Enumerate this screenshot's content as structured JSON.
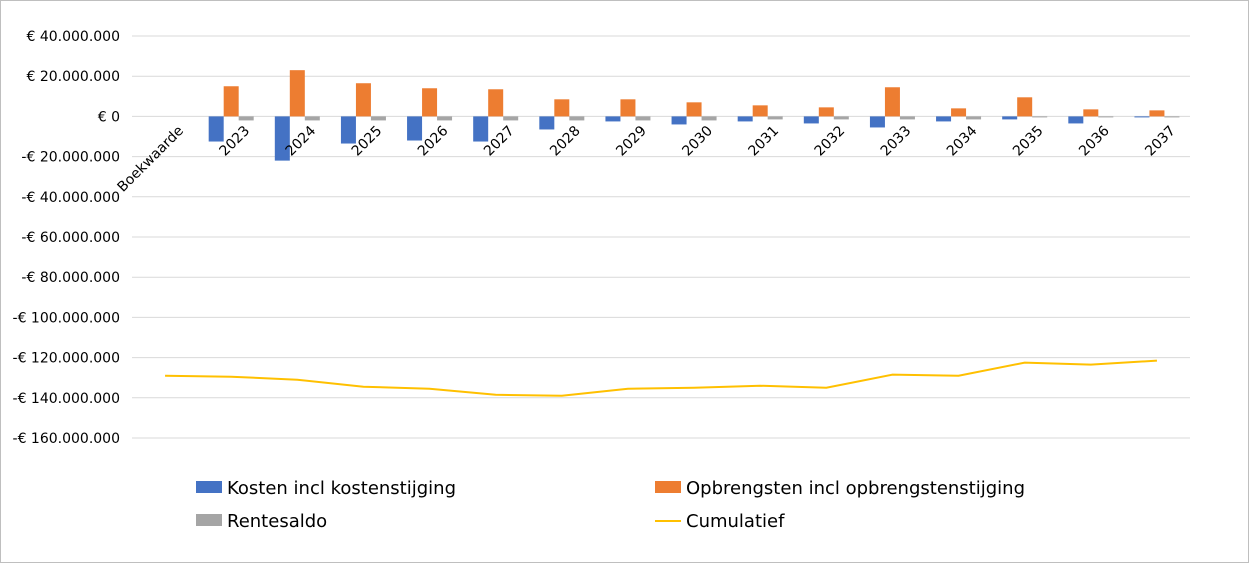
{
  "chart_data": {
    "type": "bar",
    "categories": [
      "Boekwaarde",
      "2023",
      "2024",
      "2025",
      "2026",
      "2027",
      "2028",
      "2029",
      "2030",
      "2031",
      "2032",
      "2033",
      "2034",
      "2035",
      "2036",
      "2037"
    ],
    "series": [
      {
        "name": "Kosten incl kostenstijging",
        "type": "bar",
        "color": "#4472C4",
        "values": [
          0,
          -12500000,
          -22000000,
          -13500000,
          -12000000,
          -12500000,
          -6500000,
          -2500000,
          -4000000,
          -2500000,
          -3500000,
          -5500000,
          -2500000,
          -1500000,
          -3500000,
          -500000
        ]
      },
      {
        "name": "Opbrengsten incl opbrengstenstijging",
        "type": "bar",
        "color": "#ED7D31",
        "values": [
          0,
          15000000,
          23000000,
          16500000,
          14000000,
          13500000,
          8500000,
          8500000,
          7000000,
          5500000,
          4500000,
          14500000,
          4000000,
          9500000,
          3500000,
          3000000
        ]
      },
      {
        "name": "Rentesaldo",
        "type": "bar",
        "color": "#A5A5A5",
        "values": [
          0,
          -2000000,
          -2000000,
          -2000000,
          -2000000,
          -2000000,
          -2000000,
          -2000000,
          -2000000,
          -1500000,
          -1500000,
          -1500000,
          -1500000,
          -500000,
          -500000,
          -500000
        ]
      },
      {
        "name": "Cumulatief",
        "type": "line",
        "color": "#FFC000",
        "values": [
          -129000000,
          -129500000,
          -131000000,
          -134500000,
          -135500000,
          -138500000,
          -139000000,
          -135500000,
          -135000000,
          -134000000,
          -135000000,
          -128500000,
          -129000000,
          -122500000,
          -123500000,
          -121500000
        ]
      }
    ],
    "y_ticks": [
      "€ 40.000.000",
      "€ 20.000.000",
      "€ 0",
      "-€ 20.000.000",
      "-€ 40.000.000",
      "-€ 60.000.000",
      "-€ 80.000.000",
      "-€ 100.000.000",
      "-€ 120.000.000",
      "-€ 140.000.000",
      "-€ 160.000.000"
    ],
    "ylim": [
      -160000000,
      40000000
    ],
    "title": "",
    "xlabel": "",
    "ylabel": "",
    "grid": true,
    "legend_position": "bottom"
  }
}
